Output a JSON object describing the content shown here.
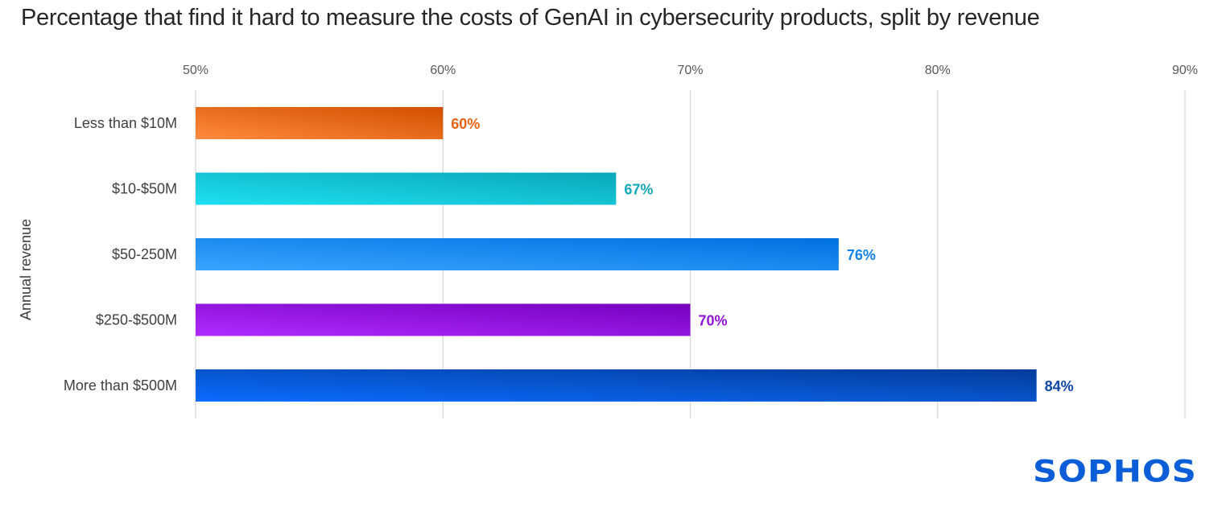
{
  "chart_data": {
    "type": "bar",
    "orientation": "horizontal",
    "title": "Percentage that find it hard to measure the costs of GenAI in cybersecurity products, split by revenue",
    "xlabel": "",
    "ylabel": "Annual revenue",
    "xlim": [
      50,
      90
    ],
    "xticks": [
      "50%",
      "60%",
      "70%",
      "80%",
      "90%"
    ],
    "xtick_values": [
      50,
      60,
      70,
      80,
      90
    ],
    "grid": true,
    "categories": [
      "Less than $10M",
      "$10-$50M",
      "$50-250M",
      "$250-$500M",
      "More than $500M"
    ],
    "values": [
      60,
      67,
      76,
      70,
      84
    ],
    "data_labels": [
      "60%",
      "67%",
      "76%",
      "70%",
      "84%"
    ],
    "colors": [
      {
        "light": "#ff8a3d",
        "dark": "#d14f00",
        "label": "#e5600f"
      },
      {
        "light": "#1ee0f0",
        "dark": "#0aa7b8",
        "label": "#12a8bb"
      },
      {
        "light": "#3aa5ff",
        "dark": "#0070e0",
        "label": "#1282ef"
      },
      {
        "light": "#b02cff",
        "dark": "#7400bd",
        "label": "#8f14d6"
      },
      {
        "light": "#0a6cff",
        "dark": "#053c9a",
        "label": "#0d47a8"
      }
    ]
  },
  "brand": {
    "logo_text": "SOPHOS"
  }
}
